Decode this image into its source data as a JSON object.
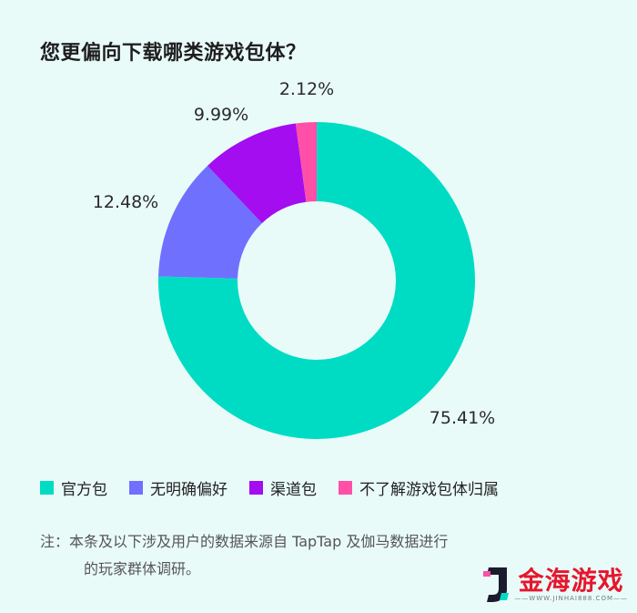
{
  "title": "您更偏向下载哪类游戏包体？",
  "chart_data": {
    "type": "pie",
    "title": "您更偏向下载哪类游戏包体？",
    "categories": [
      "官方包",
      "无明确偏好",
      "渠道包",
      "不了解游戏包体归属"
    ],
    "values": [
      75.41,
      12.48,
      9.99,
      2.12
    ],
    "labels": [
      "75.41%",
      "12.48%",
      "9.99%",
      "2.12%"
    ],
    "colors": [
      "#00dcc4",
      "#7070ff",
      "#a30df0",
      "#ff4fa7"
    ],
    "donut": true,
    "legend_position": "bottom"
  },
  "note": {
    "line1": "注：本条及以下涉及用户的数据来源自 TapTap 及伽马数据进行",
    "line2": "的玩家群体调研。"
  },
  "watermark": {
    "name": "金海游戏",
    "url": "——WWW.JINHAI888.COM——"
  }
}
